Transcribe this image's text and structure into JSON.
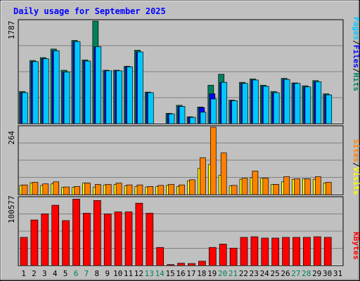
{
  "page": {
    "title": "Daily usage for September 2025"
  },
  "colors": {
    "frame_bg": "#c0c0c0",
    "hits": "#00805c",
    "files": "#0000ff",
    "pages": "#00c8ff",
    "visits": "#ffff00",
    "sites": "#ff8000",
    "kbytes": "#ff0000",
    "weekday_label": "#000000",
    "weekend_label": "#00805c"
  },
  "legends": {
    "top": {
      "pages": "Pages",
      "sep1": "/",
      "files": "Files",
      "sep2": "/",
      "hits": "Hits"
    },
    "middle": {
      "sites": "Sites",
      "sep": "/",
      "visits": "Visits"
    },
    "bottom": {
      "kbytes": "KBytes"
    }
  },
  "chart_data": [
    {
      "type": "bar",
      "panel": "hits-files-pages",
      "categories": [
        "1",
        "2",
        "3",
        "4",
        "5",
        "6",
        "7",
        "8",
        "9",
        "10",
        "11",
        "12",
        "13",
        "14",
        "15",
        "16",
        "17",
        "18",
        "19",
        "20",
        "21",
        "22",
        "23",
        "24",
        "25",
        "26",
        "27",
        "28",
        "29",
        "30",
        "31"
      ],
      "ylabel": "1787",
      "ylim": [
        0,
        1787
      ],
      "series": [
        {
          "name": "Hits",
          "color": "#00805c",
          "values": [
            560,
            1100,
            1150,
            1300,
            930,
            1450,
            1110,
            1787,
            930,
            930,
            1000,
            1280,
            550,
            0,
            180,
            320,
            120,
            290,
            670,
            860,
            410,
            720,
            780,
            670,
            560,
            790,
            710,
            660,
            750,
            520,
            0
          ]
        },
        {
          "name": "Files",
          "color": "#0000ff",
          "values": [
            540,
            1080,
            1130,
            1270,
            900,
            1430,
            1090,
            1340,
            920,
            920,
            990,
            1250,
            540,
            0,
            170,
            300,
            110,
            280,
            520,
            720,
            400,
            700,
            760,
            650,
            540,
            770,
            700,
            640,
            730,
            500,
            0
          ]
        },
        {
          "name": "Pages",
          "color": "#00c8ff",
          "values": [
            540,
            1080,
            1130,
            1270,
            900,
            1430,
            1090,
            1340,
            920,
            920,
            990,
            1250,
            540,
            0,
            170,
            300,
            110,
            200,
            430,
            720,
            400,
            700,
            760,
            650,
            540,
            770,
            700,
            640,
            730,
            500,
            0
          ]
        }
      ]
    },
    {
      "type": "bar",
      "panel": "sites-visits",
      "categories": [
        "1",
        "2",
        "3",
        "4",
        "5",
        "6",
        "7",
        "8",
        "9",
        "10",
        "11",
        "12",
        "13",
        "14",
        "15",
        "16",
        "17",
        "18",
        "19",
        "20",
        "21",
        "22",
        "23",
        "24",
        "25",
        "26",
        "27",
        "28",
        "29",
        "30",
        "31"
      ],
      "ylabel": "264",
      "ylim": [
        0,
        264
      ],
      "series": [
        {
          "name": "Sites",
          "color": "#ff8000",
          "values": [
            38,
            48,
            42,
            50,
            30,
            32,
            45,
            40,
            40,
            45,
            38,
            38,
            32,
            36,
            40,
            38,
            58,
            144,
            264,
            163,
            36,
            64,
            92,
            64,
            40,
            70,
            62,
            62,
            70,
            48,
            0
          ]
        },
        {
          "name": "Visits",
          "color": "#ffff00",
          "values": [
            36,
            46,
            36,
            42,
            28,
            28,
            45,
            28,
            38,
            40,
            34,
            32,
            30,
            32,
            36,
            32,
            54,
            102,
            118,
            76,
            34,
            60,
            66,
            64,
            40,
            50,
            60,
            62,
            60,
            46,
            0
          ]
        }
      ]
    },
    {
      "type": "bar",
      "panel": "kbytes",
      "categories": [
        "1",
        "2",
        "3",
        "4",
        "5",
        "6",
        "7",
        "8",
        "9",
        "10",
        "11",
        "12",
        "13",
        "14",
        "15",
        "16",
        "17",
        "18",
        "19",
        "20",
        "21",
        "22",
        "23",
        "24",
        "25",
        "26",
        "27",
        "28",
        "29",
        "30",
        "31"
      ],
      "ylabel": "100577",
      "ylim": [
        0,
        100577
      ],
      "series": [
        {
          "name": "KBytes",
          "color": "#ff0000",
          "values": [
            42000,
            68000,
            77000,
            90000,
            67000,
            99000,
            78000,
            97000,
            77000,
            80000,
            80000,
            93000,
            78000,
            27000,
            1500,
            3500,
            3000,
            6500,
            27000,
            32000,
            26000,
            42000,
            43000,
            41000,
            41000,
            42000,
            42000,
            42000,
            43000,
            42000,
            0
          ]
        }
      ]
    }
  ],
  "x_axis": {
    "labels": [
      "1",
      "2",
      "3",
      "4",
      "5",
      "6",
      "7",
      "8",
      "9",
      "10",
      "11",
      "12",
      "13",
      "14",
      "15",
      "16",
      "17",
      "18",
      "19",
      "20",
      "21",
      "22",
      "23",
      "24",
      "25",
      "26",
      "27",
      "28",
      "29",
      "30",
      "31"
    ],
    "weekend_days": [
      "6",
      "7",
      "13",
      "14",
      "20",
      "21",
      "27",
      "28"
    ]
  }
}
